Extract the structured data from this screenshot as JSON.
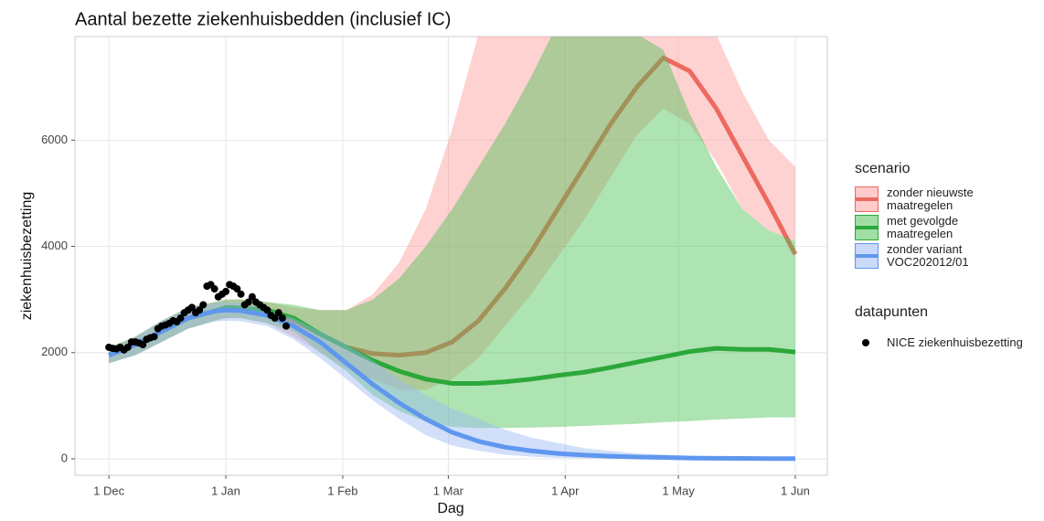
{
  "chart_data": {
    "type": "line",
    "title": "Aantal bezette ziekenhuisbedden (inclusief IC)",
    "xlabel": "Dag",
    "ylabel": "ziekenhuisbezetting",
    "xlim": [
      -9,
      190.5
    ],
    "xticks": [
      {
        "value": 0,
        "label": "1 Dec"
      },
      {
        "value": 31,
        "label": "1 Jan"
      },
      {
        "value": 62,
        "label": "1 Feb"
      },
      {
        "value": 90,
        "label": "1 Mar"
      },
      {
        "value": 121,
        "label": "1 Apr"
      },
      {
        "value": 151,
        "label": "1 May"
      },
      {
        "value": 182,
        "label": "1 Jun"
      }
    ],
    "ylim": [
      -310,
      7950
    ],
    "yticks": [
      0,
      2000,
      4000,
      6000
    ],
    "grid": true,
    "legend_title": "scenario",
    "x": [
      0,
      7,
      14,
      21,
      28,
      31,
      35,
      42,
      49,
      56,
      63,
      70,
      77,
      84,
      91,
      98,
      105,
      112,
      119,
      126,
      133,
      140,
      147,
      154,
      161,
      168,
      175,
      182
    ],
    "series": [
      {
        "name": "zonder nieuwste maatregelen",
        "color": "#ec6a5f",
        "fill": "#ff9c9c",
        "values": [
          1950,
          2150,
          2400,
          2650,
          2780,
          2850,
          2840,
          2800,
          2600,
          2350,
          2100,
          1980,
          1950,
          2000,
          2200,
          2600,
          3200,
          3900,
          4700,
          5500,
          6300,
          7000,
          7550,
          7300,
          6600,
          5700,
          4800,
          3850
        ],
        "lower": [
          1800,
          1950,
          2200,
          2450,
          2600,
          2650,
          2650,
          2550,
          2300,
          2000,
          1700,
          1500,
          1300,
          1300,
          1500,
          1900,
          2500,
          3100,
          3800,
          4500,
          5300,
          6100,
          6600,
          6300,
          5600,
          4700,
          4300,
          4100
        ],
        "upper": [
          2100,
          2300,
          2600,
          2850,
          2950,
          3000,
          3000,
          2950,
          2850,
          2800,
          2800,
          3100,
          3700,
          4700,
          6200,
          8000,
          9000,
          9500,
          9800,
          9900,
          9900,
          9800,
          9500,
          9000,
          8000,
          6900,
          6000,
          5500
        ]
      },
      {
        "name": "met gevolgde maatregelen",
        "color": "#2ca83a",
        "fill": "#4cc254",
        "values": [
          1950,
          2150,
          2400,
          2650,
          2780,
          2850,
          2840,
          2800,
          2650,
          2350,
          2100,
          1850,
          1650,
          1500,
          1420,
          1420,
          1450,
          1500,
          1570,
          1630,
          1720,
          1820,
          1920,
          2020,
          2080,
          2060,
          2060,
          2010
        ],
        "lower": [
          1800,
          1950,
          2200,
          2450,
          2600,
          2650,
          2650,
          2550,
          2400,
          2000,
          1650,
          1200,
          900,
          700,
          600,
          580,
          580,
          590,
          600,
          620,
          640,
          660,
          690,
          710,
          740,
          760,
          780,
          780
        ],
        "upper": [
          2100,
          2300,
          2600,
          2850,
          2950,
          3000,
          3000,
          2950,
          2900,
          2800,
          2800,
          3000,
          3400,
          4000,
          4700,
          5500,
          6300,
          7200,
          8200,
          8500,
          8400,
          8000,
          7700,
          6500,
          5500,
          4700,
          4300,
          4100
        ]
      },
      {
        "name": "zonder variant VOC202012/01",
        "color": "#5f97ee",
        "fill": "#9cb9f5",
        "values": [
          1950,
          2150,
          2400,
          2650,
          2780,
          2800,
          2790,
          2700,
          2500,
          2200,
          1800,
          1400,
          1050,
          750,
          500,
          330,
          220,
          150,
          100,
          70,
          50,
          35,
          25,
          15,
          10,
          8,
          5,
          5
        ],
        "lower": [
          1800,
          1950,
          2200,
          2450,
          2580,
          2600,
          2590,
          2500,
          2250,
          1900,
          1500,
          1100,
          750,
          450,
          250,
          150,
          80,
          40,
          20,
          10,
          5,
          0,
          0,
          0,
          0,
          0,
          0,
          0
        ],
        "upper": [
          2050,
          2300,
          2600,
          2850,
          2930,
          2950,
          2940,
          2800,
          2650,
          2400,
          2150,
          1850,
          1500,
          1200,
          950,
          750,
          550,
          400,
          300,
          200,
          150,
          100,
          80,
          60,
          50,
          40,
          30,
          30
        ]
      }
    ],
    "points": {
      "legend_title": "datapunten",
      "name": "NICE ziekenhuisbezetting",
      "color": "#000000",
      "x": [
        0,
        1,
        2,
        3,
        4,
        5,
        6,
        7,
        8,
        9,
        10,
        11,
        12,
        13,
        14,
        15,
        16,
        17,
        18,
        19,
        20,
        21,
        22,
        23,
        24,
        25,
        26,
        27,
        28,
        29,
        30,
        31,
        32,
        33,
        34,
        35,
        36,
        37,
        38,
        39,
        40,
        41,
        42,
        43,
        44,
        45,
        46,
        47
      ],
      "values": [
        2100,
        2080,
        2070,
        2100,
        2050,
        2100,
        2200,
        2200,
        2180,
        2150,
        2250,
        2280,
        2300,
        2450,
        2500,
        2520,
        2550,
        2600,
        2580,
        2650,
        2750,
        2800,
        2850,
        2750,
        2800,
        2900,
        3250,
        3280,
        3200,
        3050,
        3100,
        3150,
        3280,
        3250,
        3200,
        3100,
        2900,
        2950,
        3050,
        2950,
        2900,
        2850,
        2800,
        2700,
        2650,
        2750,
        2650,
        2500
      ]
    }
  }
}
